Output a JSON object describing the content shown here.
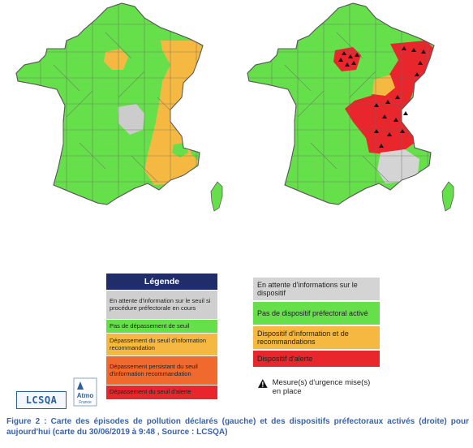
{
  "legend_left": {
    "title": "Légende",
    "items": [
      {
        "label": "En attente d'information sur le seuil si procédure préfectorale en cours",
        "color": "#cfcfcf"
      },
      {
        "label": "Pas de dépassement de seuil",
        "color": "#66e04a"
      },
      {
        "label": "Dépassement du seuil d'information recommandation",
        "color": "#f5b942"
      },
      {
        "label": "Dépassement persistant du seuil d'information recommandation",
        "color": "#f06a2e"
      },
      {
        "label": "Dépassement du seuil d'alerte",
        "color": "#e8262c"
      }
    ]
  },
  "legend_right": {
    "items": [
      {
        "label": "En attente d'informations sur le dispositif",
        "color": "#d4d4d4"
      },
      {
        "label": "Pas de dispositif préfectoral activé",
        "color": "#66e04a"
      },
      {
        "label": "Dispositif d'information et de recommandations",
        "color": "#f5b942"
      },
      {
        "label": "Dispositif d'alerte",
        "color": "#e8262c"
      }
    ],
    "warning_label": "Mesure(s) d'urgence mise(s) en place"
  },
  "logos": {
    "lcsqa": "LCSQA",
    "atmo": "Atmo",
    "atmo_sub": "France"
  },
  "caption": "Figure 2 : Carte des épisodes de pollution déclarés (gauche) et des dispositifs préfectoraux activés (droite) pour aujourd'hui (carte du 30/06/2019 à 9:48 , Source : LCSQA)",
  "colors": {
    "green": "#66e04a",
    "orange": "#f5b942",
    "red": "#e8262c",
    "grey": "#cccccc",
    "caption_blue": "#3a62a8",
    "legend_title_bg": "#1f2d6b"
  }
}
